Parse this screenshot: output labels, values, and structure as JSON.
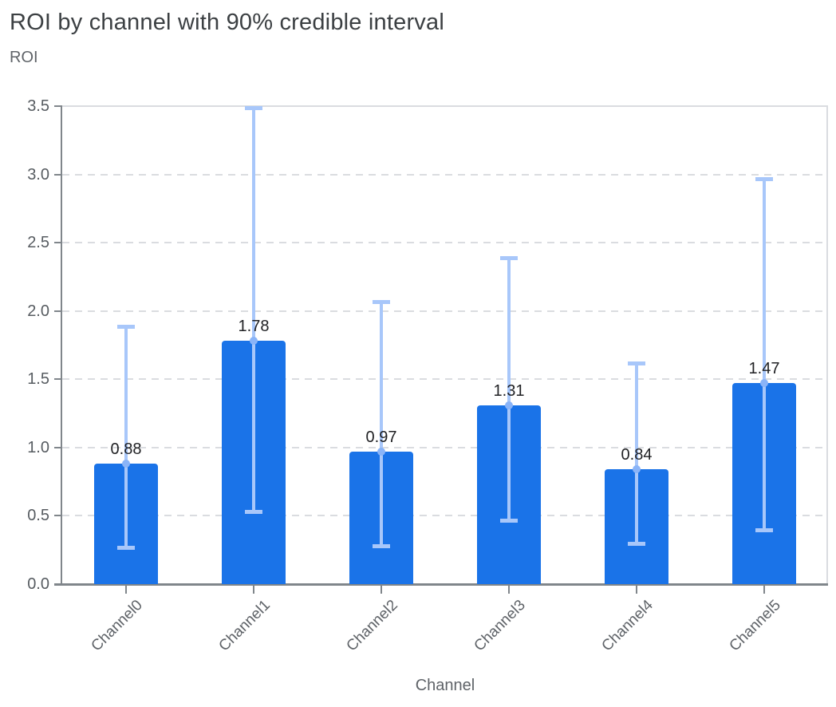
{
  "header": {
    "title": "ROI by channel with 90% credible interval"
  },
  "chart_data": {
    "type": "bar",
    "title": "ROI by channel with 90% credible interval",
    "xlabel": "Channel",
    "ylabel": "ROI",
    "ylim": [
      0,
      3.5
    ],
    "ytick_labels": [
      "0.0",
      "0.5",
      "1.0",
      "1.5",
      "2.0",
      "2.5",
      "3.0",
      "3.5"
    ],
    "grid": "horizontal-dashed",
    "legend": "none",
    "categories": [
      "Channel0",
      "Channel1",
      "Channel2",
      "Channel3",
      "Channel4",
      "Channel5"
    ],
    "series": [
      {
        "name": "ROI",
        "values": [
          0.88,
          1.78,
          0.97,
          1.31,
          0.84,
          1.47
        ]
      }
    ],
    "bar_labels": [
      "0.88",
      "1.78",
      "0.97",
      "1.31",
      "0.84",
      "1.47"
    ],
    "error_bars": {
      "label": "90% credible interval",
      "lower": [
        0.27,
        0.53,
        0.28,
        0.47,
        0.3,
        0.4
      ],
      "upper": [
        1.89,
        3.49,
        2.07,
        2.39,
        1.62,
        2.97
      ]
    },
    "colors": {
      "bar": "#1a73e8",
      "whisker": "#a8c7fa",
      "marker": "#8ab4f8",
      "grid": "#dadce0",
      "axis": "#80868b",
      "value_label": "#202124",
      "tick_label": "#5f6368",
      "title": "#3c4043"
    }
  }
}
